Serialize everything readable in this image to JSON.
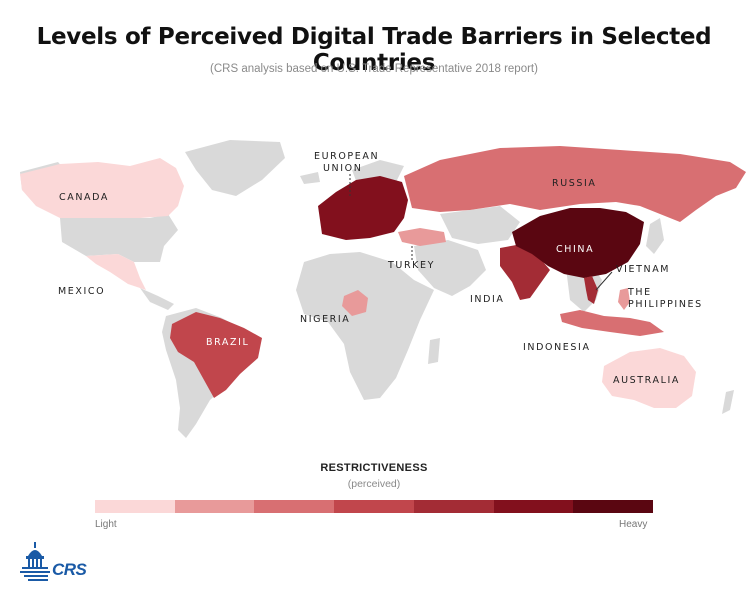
{
  "title": "Levels of Perceived  Digital Trade Barriers in Selected Countries",
  "subtitle": "(CRS analysis based on U.S. Trade Representative 2018 report)",
  "countries": {
    "canada": {
      "label": "CANADA",
      "level": 1
    },
    "mexico": {
      "label": "MEXICO",
      "level": 1
    },
    "brazil": {
      "label": "BRAZIL",
      "level": 4
    },
    "eu_line1": "EUROPEAN",
    "eu_line2": "UNION",
    "eu": {
      "level": 6
    },
    "russia": {
      "label": "RUSSIA",
      "level": 3
    },
    "turkey": {
      "label": "TURKEY",
      "level": 2
    },
    "nigeria": {
      "label": "NIGERIA",
      "level": 2
    },
    "india": {
      "label": "INDIA",
      "level": 5
    },
    "china": {
      "label": "CHINA",
      "level": 7
    },
    "vietnam": {
      "label": "VIETNAM",
      "level": 5
    },
    "phil_line1": "THE",
    "phil_line2": "PHILIPPINES",
    "indonesia": {
      "label": "INDONESIA",
      "level": 3
    },
    "australia": {
      "label": "AUSTRALIA",
      "level": 1
    }
  },
  "legend": {
    "title": "RESTRICTIVENESS",
    "subtitle": "(perceived)",
    "min_label": "Light",
    "max_label": "Heavy",
    "colors": [
      "#fbd8d8",
      "#e89a9a",
      "#d86f72",
      "#c1464c",
      "#a32c35",
      "#82101d",
      "#5a0611"
    ]
  },
  "map_colors": {
    "land": "#d9d9d9",
    "water": "#ffffff"
  },
  "logo": {
    "text": "CRS",
    "icon": "capitol-dome-icon"
  }
}
